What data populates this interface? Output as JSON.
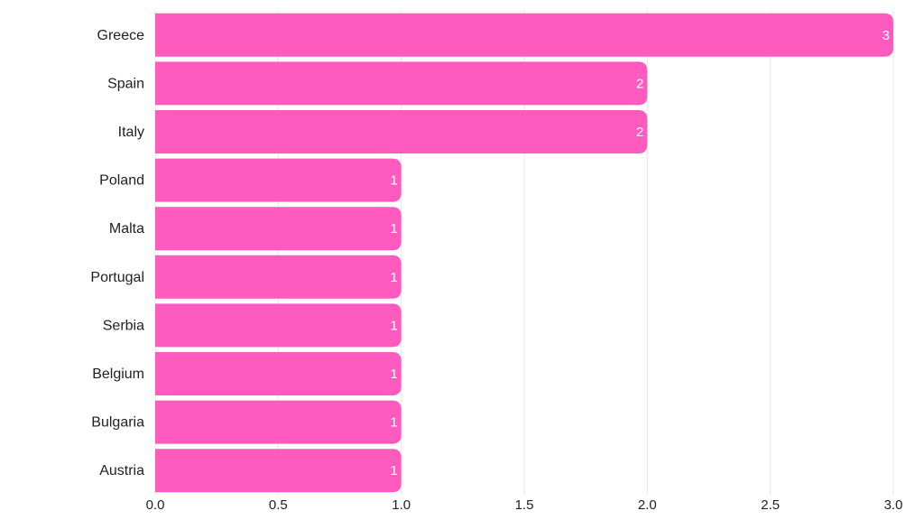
{
  "chart_data": {
    "type": "bar",
    "orientation": "horizontal",
    "title": "",
    "xlabel": "",
    "ylabel": "",
    "categories": [
      "Greece",
      "Spain",
      "Italy",
      "Poland",
      "Malta",
      "Portugal",
      "Serbia",
      "Belgium",
      "Bulgaria",
      "Austria"
    ],
    "values": [
      3,
      2,
      2,
      1,
      1,
      1,
      1,
      1,
      1,
      1
    ],
    "data_labels": [
      "3",
      "2",
      "2",
      "1",
      "1",
      "1",
      "1",
      "1",
      "1",
      "1"
    ],
    "xlim": [
      0,
      3
    ],
    "x_ticks": [
      0,
      0.5,
      1,
      1.5,
      2,
      2.5,
      3
    ],
    "x_tick_labels": [
      "0.0",
      "0.5",
      "1.0",
      "1.5",
      "2.0",
      "2.5",
      "3.0"
    ],
    "grid": "vertical",
    "legend": "none",
    "bar_color": "#ff5abe",
    "grid_color": "#e6e6e6"
  }
}
